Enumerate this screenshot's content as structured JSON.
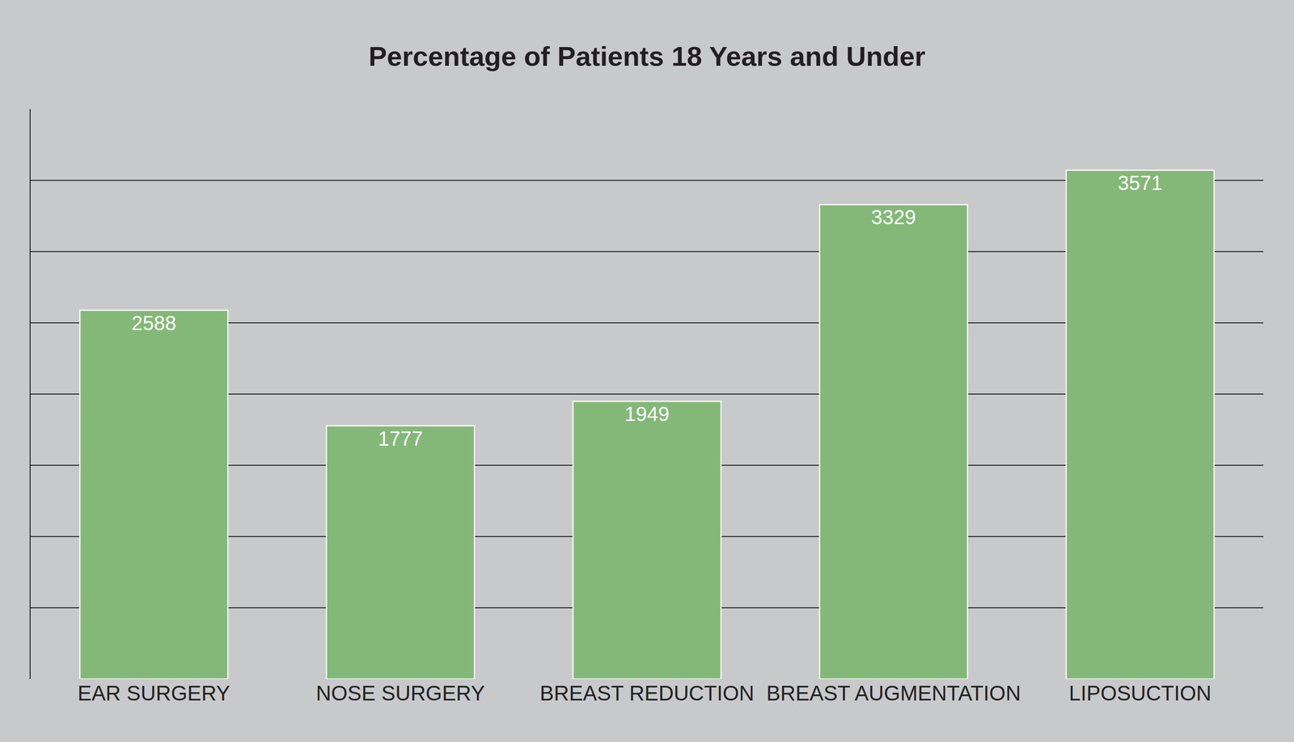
{
  "chart_data": {
    "type": "bar",
    "title": "Percentage of Patients 18 Years and Under",
    "categories": [
      "EAR SURGERY",
      "NOSE SURGERY",
      "BREAST REDUCTION",
      "BREAST AUGMENTATION",
      "LIPOSUCTION"
    ],
    "values": [
      2588,
      1777,
      1949,
      3329,
      3571
    ],
    "color": "#84b878",
    "ylim": [
      0,
      4000
    ],
    "yticks": [
      0,
      500,
      1000,
      1500,
      2000,
      2500,
      3000,
      3500,
      4000
    ],
    "grid": true,
    "data_labels": true,
    "tick_labels": "x"
  }
}
